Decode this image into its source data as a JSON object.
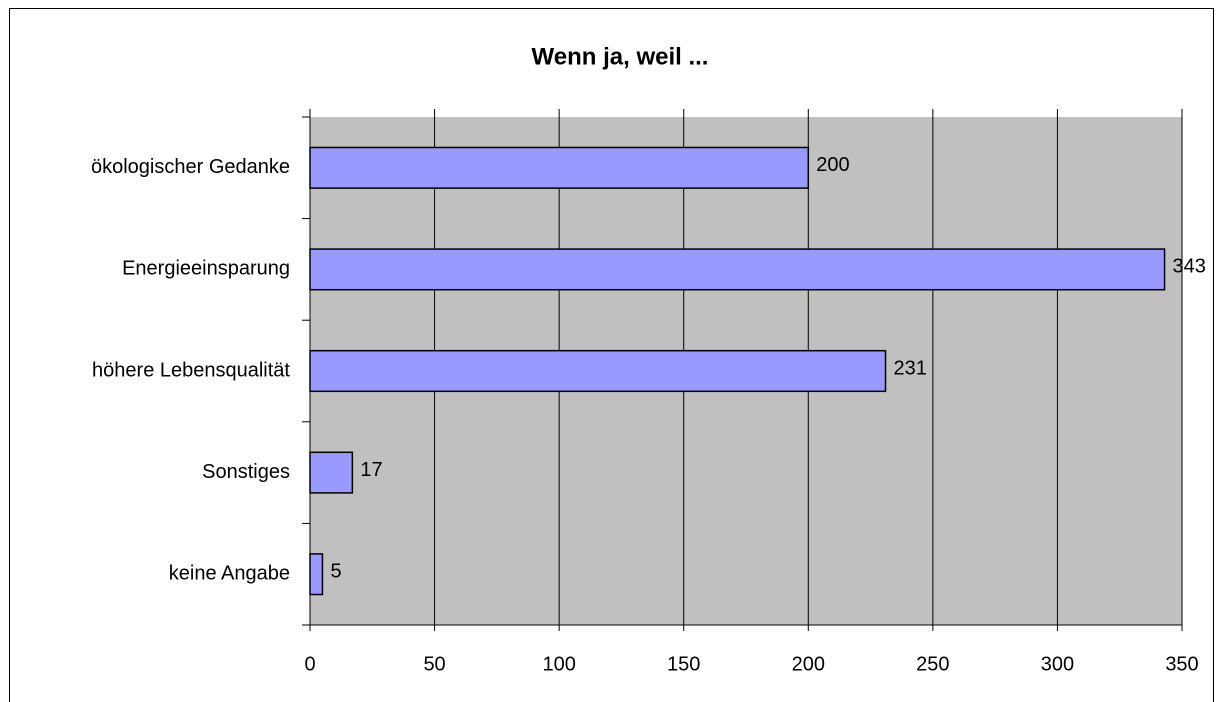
{
  "chart_data": {
    "type": "bar",
    "orientation": "horizontal",
    "title": "Wenn ja, weil ...",
    "categories": [
      "ökologischer Gedanke",
      "Energieeinsparung",
      "höhere Lebensqualität",
      "Sonstiges",
      "keine Angabe"
    ],
    "values": [
      200,
      343,
      231,
      17,
      5
    ],
    "color": "#9999ff",
    "xlim": [
      0,
      350
    ],
    "xticks": [
      0,
      50,
      100,
      150,
      200,
      250,
      300,
      350
    ],
    "grid": true
  }
}
